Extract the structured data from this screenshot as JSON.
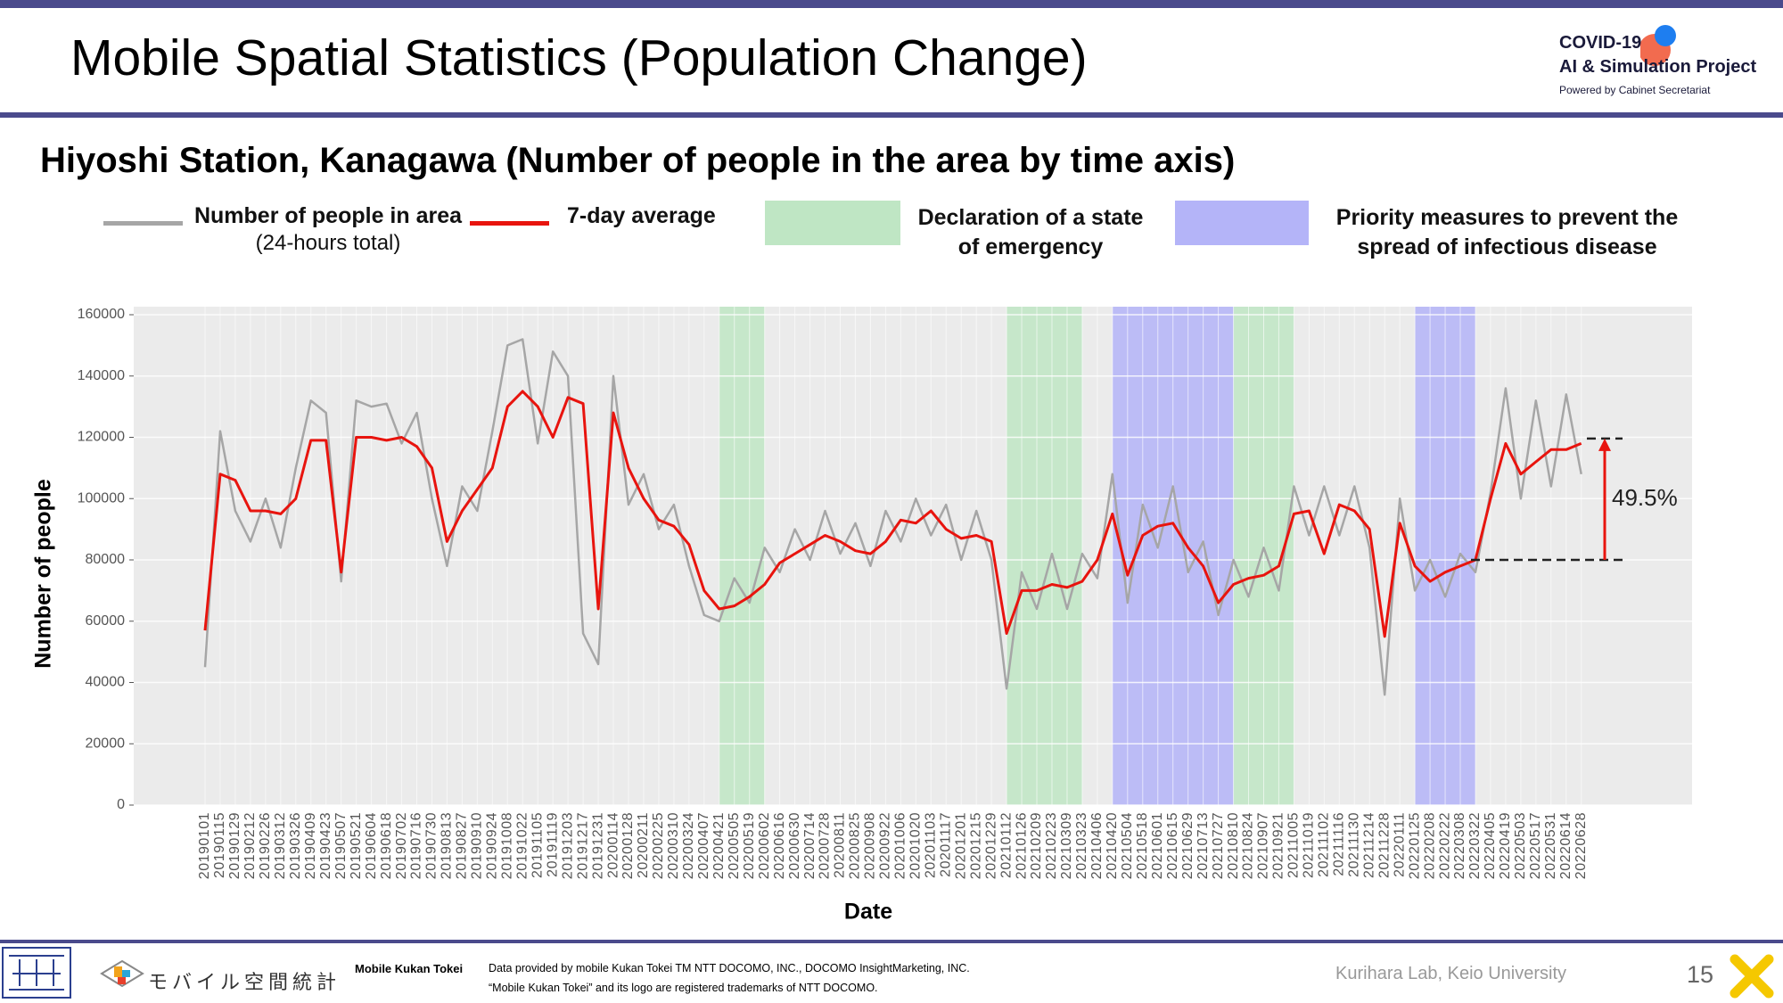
{
  "header": {
    "title": "Mobile Spatial Statistics (Population Change)",
    "logo_line1": "COVID-19",
    "logo_line2": "AI & Simulation Project",
    "logo_line3": "Powered by Cabinet Secretariat"
  },
  "chart_data": {
    "type": "line",
    "title": "Hiyoshi Station, Kanagawa (Number of people in the area by time axis)",
    "x_label": "Date",
    "y_label": "Number of people",
    "categories": [
      "20190101",
      "20190115",
      "20190129",
      "20190212",
      "20190226",
      "20190312",
      "20190326",
      "20190409",
      "20190423",
      "20190507",
      "20190521",
      "20190604",
      "20190618",
      "20190702",
      "20190716",
      "20190730",
      "20190813",
      "20190827",
      "20190910",
      "20190924",
      "20191008",
      "20191022",
      "20191105",
      "20191119",
      "20191203",
      "20191217",
      "20191231",
      "20200114",
      "20200128",
      "20200211",
      "20200225",
      "20200310",
      "20200324",
      "20200407",
      "20200421",
      "20200505",
      "20200519",
      "20200602",
      "20200616",
      "20200630",
      "20200714",
      "20200728",
      "20200811",
      "20200825",
      "20200908",
      "20200922",
      "20201006",
      "20201020",
      "20201103",
      "20201117",
      "20201201",
      "20201215",
      "20201229",
      "20210112",
      "20210126",
      "20210209",
      "20210223",
      "20210309",
      "20210323",
      "20210406",
      "20210420",
      "20210504",
      "20210518",
      "20210601",
      "20210615",
      "20210629",
      "20210713",
      "20210727",
      "20210810",
      "20210824",
      "20210907",
      "20210921",
      "20211005",
      "20211019",
      "20211102",
      "20211116",
      "20211130",
      "20211214",
      "20211228",
      "20220111",
      "20220125",
      "20220208",
      "20220222",
      "20220308",
      "20220322",
      "20220405",
      "20220419",
      "20220503",
      "20220517",
      "20220531",
      "20220614",
      "20220628"
    ],
    "series": [
      {
        "name": "Number of people in area",
        "name_note": "(24-hours total)",
        "color": "#a6a6a6",
        "values": [
          45000,
          122000,
          96000,
          86000,
          100000,
          84000,
          110000,
          132000,
          128000,
          73000,
          132000,
          130000,
          131000,
          118000,
          128000,
          100000,
          78000,
          104000,
          96000,
          122000,
          150000,
          152000,
          118000,
          148000,
          140000,
          56000,
          46000,
          140000,
          98000,
          108000,
          90000,
          98000,
          78000,
          62000,
          60000,
          74000,
          66000,
          84000,
          76000,
          90000,
          80000,
          96000,
          82000,
          92000,
          78000,
          96000,
          86000,
          100000,
          88000,
          98000,
          80000,
          96000,
          80000,
          38000,
          76000,
          64000,
          82000,
          64000,
          82000,
          74000,
          108000,
          66000,
          98000,
          84000,
          104000,
          76000,
          86000,
          62000,
          80000,
          68000,
          84000,
          70000,
          104000,
          88000,
          104000,
          88000,
          104000,
          84000,
          36000,
          100000,
          70000,
          80000,
          68000,
          82000,
          76000,
          102000,
          136000,
          100000,
          132000,
          104000,
          134000,
          108000
        ]
      },
      {
        "name": "7-day average",
        "color": "#e8140e",
        "values": [
          57000,
          108000,
          106000,
          96000,
          96000,
          95000,
          100000,
          119000,
          119000,
          76000,
          120000,
          120000,
          119000,
          120000,
          117000,
          110000,
          86000,
          96000,
          103000,
          110000,
          130000,
          135000,
          130000,
          120000,
          133000,
          131000,
          64000,
          128000,
          110000,
          100000,
          93000,
          91000,
          85000,
          70000,
          64000,
          65000,
          68000,
          72000,
          79000,
          82000,
          85000,
          88000,
          86000,
          83000,
          82000,
          86000,
          93000,
          92000,
          96000,
          90000,
          87000,
          88000,
          86000,
          56000,
          70000,
          70000,
          72000,
          71000,
          73000,
          80000,
          95000,
          75000,
          88000,
          91000,
          92000,
          84000,
          78000,
          66000,
          72000,
          74000,
          75000,
          78000,
          95000,
          96000,
          82000,
          98000,
          96000,
          90000,
          55000,
          92000,
          78000,
          73000,
          76000,
          78000,
          80000,
          100000,
          118000,
          108000,
          112000,
          116000,
          116000,
          118000
        ]
      }
    ],
    "periods": [
      {
        "name": "Declaration of a state of emergency",
        "color": "#bfe6c4",
        "ranges": [
          [
            "20200421",
            "20200602"
          ],
          [
            "20210112",
            "20210323"
          ],
          [
            "20210810",
            "20211005"
          ]
        ]
      },
      {
        "name": "Priority measures to prevent the spread of infectious disease",
        "color": "#b4b4f8",
        "ranges": [
          [
            "20210420",
            "20210810"
          ],
          [
            "20220125",
            "20220322"
          ]
        ]
      }
    ],
    "annotation": {
      "label": "49.5%",
      "from": 80000,
      "to": 119600
    },
    "ylim": [
      0,
      160000
    ],
    "yticks": [
      0,
      20000,
      40000,
      60000,
      80000,
      100000,
      120000,
      140000,
      160000
    ],
    "grid": true
  },
  "footer": {
    "brand": "モバイル空間統計",
    "product": "Mobile Kukan Tokei",
    "credit1": "Data provided by mobile Kukan Tokei TM NTT DOCOMO, INC., DOCOMO InsightMarketing, INC.",
    "credit2": "“Mobile Kukan Tokei” and its logo are registered trademarks of NTT DOCOMO.",
    "lab": "Kurihara Lab, Keio University",
    "page": "15"
  }
}
